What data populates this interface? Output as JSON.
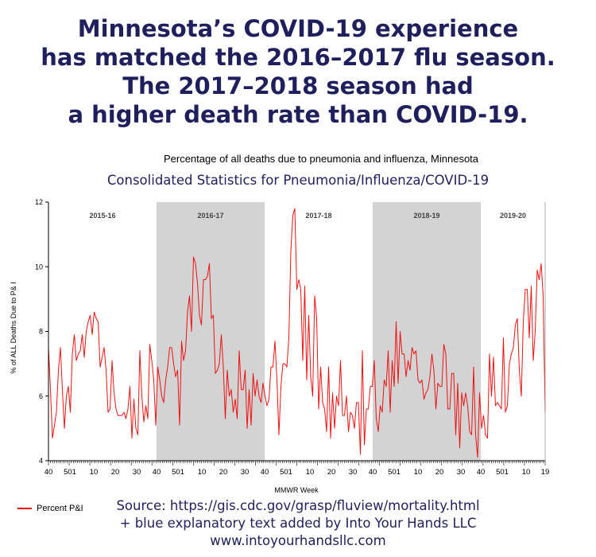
{
  "headline": [
    "Minnesota’s COVID-19 experience",
    "has matched the 2016–2017 flu season.",
    "The 2017–2018 season had",
    "a higher death rate than COVID-19."
  ],
  "subtitle": "Percentage of all deaths due to pneumonia and influenza, Minnesota",
  "chart_title": "Consolidated Statistics for Pneumonia/Influenza/COVID-19",
  "source_lines": [
    "Source: https://gis.cdc.gov/grasp/fluview/mortality.html",
    "+ blue explanatory text added by Into Your Hands LLC",
    "www.intoyourhandsllc.com"
  ],
  "colors": {
    "headline": "#1f1f5e",
    "line": "#ee1111",
    "band": "#d3d3d3"
  },
  "chart_data": {
    "type": "line",
    "ylabel": "% of ALL Deaths Due to P& I",
    "xlabel": "MMWR Week",
    "ylim": [
      4,
      12
    ],
    "yticks": [
      4,
      6,
      8,
      10,
      12
    ],
    "grid": false,
    "legend_position": "bottom-left",
    "xtick_labels": [
      "40",
      "501",
      "10",
      "20",
      "30",
      "40",
      "501",
      "10",
      "20",
      "30",
      "40",
      "501",
      "10",
      "20",
      "30",
      "40",
      "501",
      "10",
      "20",
      "30",
      "40",
      "501",
      "10",
      "19"
    ],
    "seasons": [
      {
        "label": "2015-16",
        "shaded": false
      },
      {
        "label": "2016-17",
        "shaded": true
      },
      {
        "label": "2017-18",
        "shaded": false
      },
      {
        "label": "2018-19",
        "shaded": true
      },
      {
        "label": "2019-20",
        "shaded": false
      }
    ],
    "series": [
      {
        "name": "Percent P&I",
        "values": [
          7.5,
          6.2,
          4.7,
          5.1,
          5.5,
          6.8,
          7.5,
          6.2,
          5.0,
          6.0,
          6.3,
          5.5,
          7.3,
          7.9,
          7.1,
          7.3,
          7.4,
          7.9,
          7.2,
          8.0,
          8.3,
          8.5,
          7.9,
          8.6,
          8.4,
          8.3,
          6.9,
          7.2,
          7.5,
          6.8,
          5.5,
          5.6,
          7.1,
          6.1,
          5.6,
          5.4,
          5.4,
          5.4,
          5.5,
          5.3,
          5.6,
          6.3,
          4.7,
          5.9,
          5.0,
          4.8,
          7.4,
          6.0,
          5.2,
          5.7,
          5.3,
          7.6,
          7.1,
          6.5,
          5.1,
          6.9,
          6.5,
          6.0,
          5.8,
          6.5,
          6.9,
          7.5,
          7.5,
          7.0,
          6.6,
          6.8,
          5.1,
          7.7,
          7.1,
          7.4,
          8.6,
          9.1,
          8.0,
          10.3,
          10.1,
          9.5,
          8.5,
          8.2,
          9.6,
          9.6,
          9.7,
          10.1,
          8.4,
          8.5,
          6.7,
          6.8,
          7.0,
          7.9,
          6.9,
          5.3,
          6.8,
          6.0,
          6.2,
          5.5,
          5.9,
          5.3,
          7.4,
          6.2,
          6.2,
          6.8,
          5.0,
          6.2,
          5.1,
          6.7,
          6.0,
          6.5,
          6.0,
          5.8,
          6.4,
          6.0,
          5.7,
          5.9,
          6.9,
          6.9,
          7.7,
          6.5,
          4.8,
          6.3,
          7.0,
          7.0,
          6.9,
          7.8,
          10.5,
          11.6,
          11.8,
          9.3,
          9.6,
          9.3,
          7.1,
          9.4,
          6.5,
          8.5,
          6.6,
          6.0,
          9.1,
          8.4,
          5.6,
          6.9,
          5.8,
          5.6,
          4.9,
          6.9,
          4.7,
          6.1,
          5.0,
          6.0,
          5.7,
          7.1,
          5.4,
          5.4,
          6.0,
          4.9,
          5.5,
          5.4,
          5.0,
          5.8,
          5.8,
          4.2,
          7.4,
          4.5,
          5.6,
          5.6,
          6.3,
          6.3,
          7.1,
          5.3,
          4.9,
          5.7,
          5.5,
          6.5,
          6.3,
          7.4,
          5.5,
          7.1,
          6.3,
          8.3,
          6.4,
          8.0,
          7.3,
          7.3,
          6.6,
          7.1,
          6.8,
          7.5,
          7.3,
          7.4,
          6.5,
          6.4,
          6.5,
          5.9,
          6.1,
          6.2,
          6.6,
          7.3,
          6.8,
          5.6,
          6.4,
          6.3,
          6.3,
          7.6,
          7.3,
          5.6,
          5.6,
          6.7,
          6.7,
          4.8,
          6.4,
          4.4,
          6.1,
          5.7,
          6.1,
          5.7,
          4.9,
          4.8,
          6.9,
          4.8,
          4.1,
          6.1,
          5.0,
          5.4,
          4.8,
          4.7,
          7.3,
          6.0,
          7.2,
          5.7,
          5.8,
          5.7,
          5.6,
          7.8,
          5.5,
          5.7,
          7.0,
          7.3,
          7.5,
          8.2,
          8.4,
          6.8,
          6.0,
          8.3,
          9.3,
          9.3,
          7.8,
          9.4,
          7.1,
          8.0,
          9.9,
          9.6,
          10.1,
          9.1,
          5.5
        ]
      }
    ]
  }
}
